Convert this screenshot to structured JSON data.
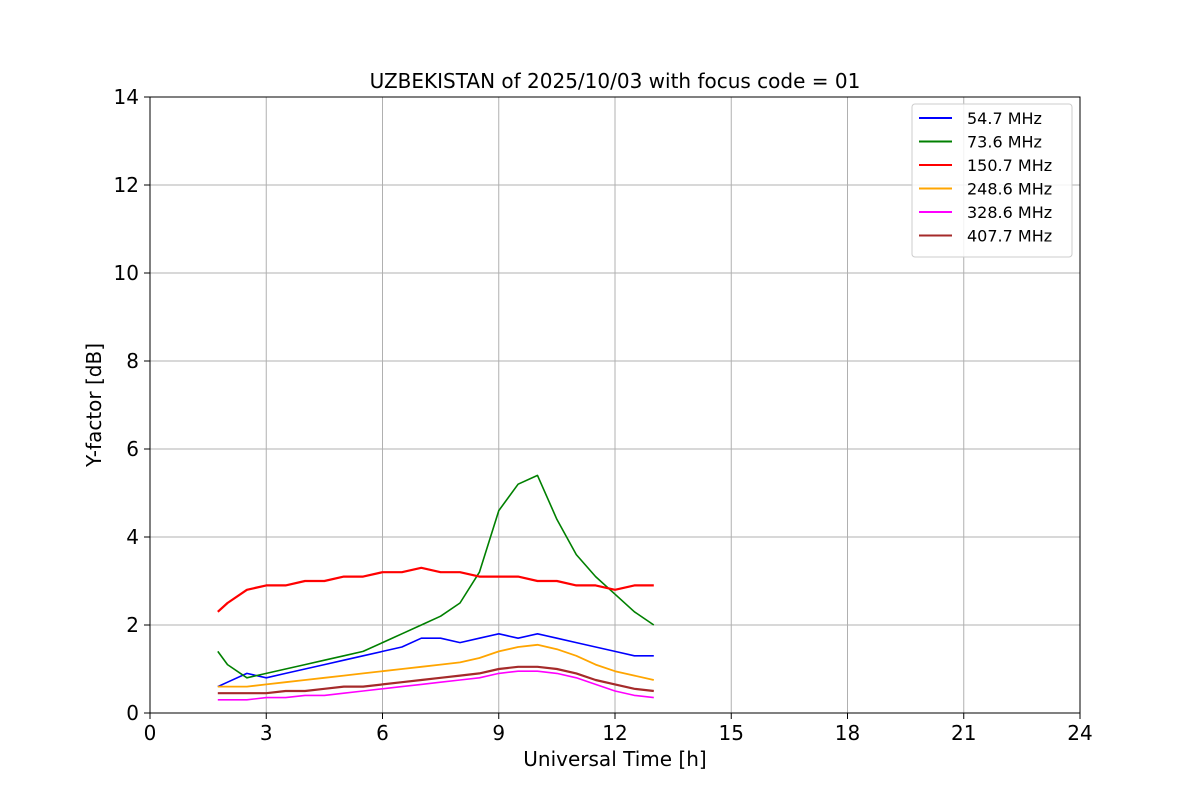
{
  "chart_data": {
    "type": "line",
    "title": "UZBEKISTAN of 2025/10/03 with focus code = 01",
    "xlabel": "Universal Time [h]",
    "ylabel": "Y-factor [dB]",
    "xlim": [
      0,
      24
    ],
    "ylim": [
      0,
      14
    ],
    "xticks": [
      0,
      3,
      6,
      9,
      12,
      15,
      18,
      21,
      24
    ],
    "yticks": [
      0,
      2,
      4,
      6,
      8,
      10,
      12,
      14
    ],
    "grid": true,
    "legend_position": "top-right",
    "series": [
      {
        "name": " 54.7 MHz",
        "color": "#0000ff",
        "x": [
          1.75,
          2.0,
          2.5,
          3.0,
          3.5,
          4.0,
          4.5,
          5.0,
          5.5,
          6.0,
          6.5,
          7.0,
          7.5,
          8.0,
          8.5,
          9.0,
          9.5,
          10.0,
          10.5,
          11.0,
          11.5,
          12.0,
          12.5,
          13.0
        ],
        "y": [
          0.6,
          0.7,
          0.9,
          0.8,
          0.9,
          1.0,
          1.1,
          1.2,
          1.3,
          1.4,
          1.5,
          1.7,
          1.7,
          1.6,
          1.7,
          1.8,
          1.7,
          1.8,
          1.7,
          1.6,
          1.5,
          1.4,
          1.3,
          1.3
        ]
      },
      {
        "name": " 73.6 MHz",
        "color": "#008000",
        "x": [
          1.75,
          2.0,
          2.5,
          3.0,
          3.5,
          4.0,
          4.5,
          5.0,
          5.5,
          6.0,
          6.5,
          7.0,
          7.5,
          8.0,
          8.5,
          9.0,
          9.5,
          10.0,
          10.5,
          11.0,
          11.5,
          12.0,
          12.5,
          13.0
        ],
        "y": [
          1.4,
          1.1,
          0.8,
          0.9,
          1.0,
          1.1,
          1.2,
          1.3,
          1.4,
          1.6,
          1.8,
          2.0,
          2.2,
          2.5,
          3.2,
          4.6,
          5.2,
          5.4,
          4.4,
          3.6,
          3.1,
          2.7,
          2.3,
          2.0
        ]
      },
      {
        "name": " 150.7 MHz",
        "color": "#ff0000",
        "x": [
          1.75,
          2.0,
          2.5,
          3.0,
          3.5,
          4.0,
          4.5,
          5.0,
          5.5,
          6.0,
          6.5,
          7.0,
          7.5,
          8.0,
          8.5,
          9.0,
          9.5,
          10.0,
          10.5,
          11.0,
          11.5,
          12.0,
          12.5,
          13.0
        ],
        "y": [
          2.3,
          2.5,
          2.8,
          2.9,
          2.9,
          3.0,
          3.0,
          3.1,
          3.1,
          3.2,
          3.2,
          3.3,
          3.2,
          3.2,
          3.1,
          3.1,
          3.1,
          3.0,
          3.0,
          2.9,
          2.9,
          2.8,
          2.9,
          2.9
        ]
      },
      {
        "name": " 248.6 MHz",
        "color": "#ffa500",
        "x": [
          1.75,
          2.0,
          2.5,
          3.0,
          3.5,
          4.0,
          4.5,
          5.0,
          5.5,
          6.0,
          6.5,
          7.0,
          7.5,
          8.0,
          8.5,
          9.0,
          9.5,
          10.0,
          10.5,
          11.0,
          11.5,
          12.0,
          12.5,
          13.0
        ],
        "y": [
          0.6,
          0.6,
          0.6,
          0.65,
          0.7,
          0.75,
          0.8,
          0.85,
          0.9,
          0.95,
          1.0,
          1.05,
          1.1,
          1.15,
          1.25,
          1.4,
          1.5,
          1.55,
          1.45,
          1.3,
          1.1,
          0.95,
          0.85,
          0.75
        ]
      },
      {
        "name": " 328.6 MHz",
        "color": "#ff00ff",
        "x": [
          1.75,
          2.0,
          2.5,
          3.0,
          3.5,
          4.0,
          4.5,
          5.0,
          5.5,
          6.0,
          6.5,
          7.0,
          7.5,
          8.0,
          8.5,
          9.0,
          9.5,
          10.0,
          10.5,
          11.0,
          11.5,
          12.0,
          12.5,
          13.0
        ],
        "y": [
          0.3,
          0.3,
          0.3,
          0.35,
          0.35,
          0.4,
          0.4,
          0.45,
          0.5,
          0.55,
          0.6,
          0.65,
          0.7,
          0.75,
          0.8,
          0.9,
          0.95,
          0.95,
          0.9,
          0.8,
          0.65,
          0.5,
          0.4,
          0.35
        ]
      },
      {
        "name": " 407.7 MHz",
        "color": "#a52a2a",
        "x": [
          1.75,
          2.0,
          2.5,
          3.0,
          3.5,
          4.0,
          4.5,
          5.0,
          5.5,
          6.0,
          6.5,
          7.0,
          7.5,
          8.0,
          8.5,
          9.0,
          9.5,
          10.0,
          10.5,
          11.0,
          11.5,
          12.0,
          12.5,
          13.0
        ],
        "y": [
          0.45,
          0.45,
          0.45,
          0.45,
          0.5,
          0.5,
          0.55,
          0.6,
          0.6,
          0.65,
          0.7,
          0.75,
          0.8,
          0.85,
          0.9,
          1.0,
          1.05,
          1.05,
          1.0,
          0.9,
          0.75,
          0.65,
          0.55,
          0.5
        ]
      }
    ]
  }
}
